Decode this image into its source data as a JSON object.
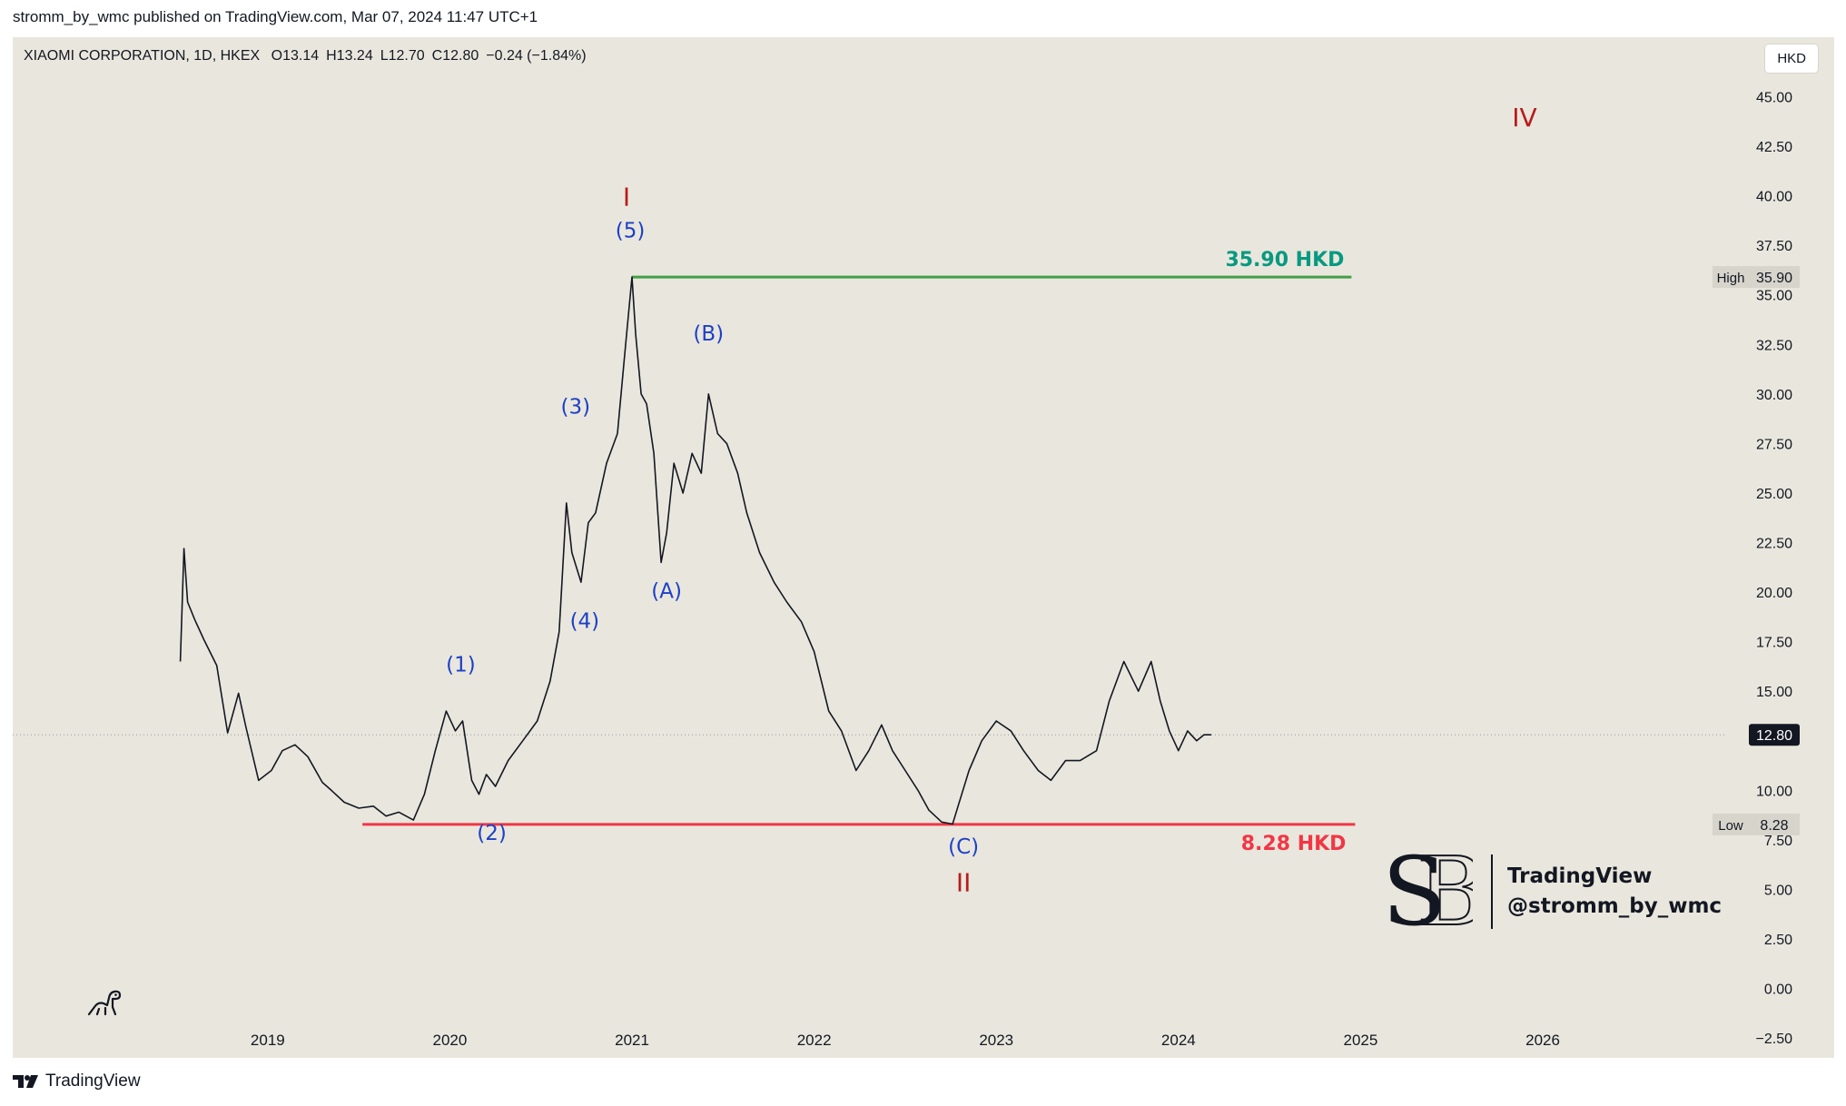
{
  "header": {
    "publisher": "stromm_by_wmc published on TradingView.com, Mar 07, 2024 11:47 UTC+1"
  },
  "symbol": {
    "name": "XIAOMI CORPORATION, 1D, HKEX",
    "open": "O13.14",
    "high": "H13.24",
    "low": "L12.70",
    "close": "C12.80",
    "change": "−0.24 (−1.84%)"
  },
  "currency_button": "HKD",
  "colors": {
    "background": "#e9e7dd",
    "price_line": "#131722",
    "high_line": "#43a047",
    "low_line": "#f23645",
    "wave_blue": "#1e40c8",
    "wave_red": "#b71c1c",
    "high_text": "#089981",
    "low_text": "#f23645"
  },
  "chart_data": {
    "type": "line",
    "title": "XIAOMI CORPORATION, 1D, HKEX",
    "ylim": [
      -3.5,
      48
    ],
    "y_ticks": [
      "45.00",
      "42.50",
      "40.00",
      "37.50",
      "35.00",
      "32.50",
      "30.00",
      "27.50",
      "25.00",
      "22.50",
      "20.00",
      "17.50",
      "15.00",
      "10.00",
      "7.50",
      "5.00",
      "2.50",
      "0.00",
      "−2.50"
    ],
    "y_tick_values": [
      45,
      42.5,
      40,
      37.5,
      35,
      32.5,
      30,
      27.5,
      25,
      22.5,
      20,
      17.5,
      15,
      10,
      7.5,
      5,
      2.5,
      0,
      -2.5
    ],
    "x_ticks": [
      "2019",
      "2020",
      "2021",
      "2022",
      "2023",
      "2024",
      "2025",
      "2026"
    ],
    "x_tick_values": [
      2019.0,
      2020.0,
      2021.0,
      2022.0,
      2023.0,
      2024.0,
      2025.0,
      2026.0
    ],
    "xlim": [
      2017.6,
      2027.6
    ],
    "series": [
      {
        "x": [
          2018.52,
          2018.54,
          2018.56,
          2018.6,
          2018.65,
          2018.72,
          2018.78,
          2018.84,
          2018.88,
          2018.95,
          2019.02,
          2019.08,
          2019.15,
          2019.22,
          2019.3,
          2019.35,
          2019.42,
          2019.5,
          2019.58,
          2019.65,
          2019.72,
          2019.8,
          2019.86,
          2019.92,
          2019.98,
          2020.03,
          2020.07,
          2020.12,
          2020.16,
          2020.2,
          2020.25,
          2020.32,
          2020.4,
          2020.48,
          2020.55,
          2020.6,
          2020.64,
          2020.67,
          2020.72,
          2020.76,
          2020.8,
          2020.86,
          2020.92,
          2020.96,
          2021.0,
          2021.02,
          2021.05,
          2021.08,
          2021.12,
          2021.16,
          2021.19,
          2021.23,
          2021.28,
          2021.33,
          2021.38,
          2021.42,
          2021.47,
          2021.52,
          2021.58,
          2021.63,
          2021.7,
          2021.78,
          2021.85,
          2021.93,
          2022.0,
          2022.08,
          2022.15,
          2022.23,
          2022.3,
          2022.37,
          2022.43,
          2022.5,
          2022.57,
          2022.63,
          2022.7,
          2022.76,
          2022.8,
          2022.85,
          2022.92,
          2023.0,
          2023.08,
          2023.15,
          2023.23,
          2023.3,
          2023.38,
          2023.46,
          2023.55,
          2023.62,
          2023.7,
          2023.78,
          2023.85,
          2023.9,
          2023.95,
          2024.0,
          2024.05,
          2024.1,
          2024.14,
          2024.18
        ],
        "values": [
          16.5,
          22.2,
          19.5,
          18.6,
          17.6,
          16.3,
          12.9,
          14.9,
          13.2,
          10.5,
          11.0,
          12.0,
          12.3,
          11.7,
          10.4,
          10.0,
          9.4,
          9.1,
          9.2,
          8.7,
          8.9,
          8.5,
          9.8,
          12.0,
          14.0,
          13.0,
          13.5,
          10.5,
          9.8,
          10.8,
          10.2,
          11.5,
          12.5,
          13.5,
          15.5,
          18.0,
          24.5,
          22.0,
          20.5,
          23.5,
          24.0,
          26.5,
          28.0,
          32.0,
          35.9,
          33.0,
          30.0,
          29.5,
          27.0,
          21.5,
          23.0,
          26.5,
          25.0,
          27.0,
          26.0,
          30.0,
          28.0,
          27.5,
          26.0,
          24.0,
          22.0,
          20.5,
          19.5,
          18.5,
          17.0,
          14.0,
          13.0,
          11.0,
          12.0,
          13.3,
          12.0,
          11.0,
          10.0,
          9.0,
          8.4,
          8.3,
          9.5,
          11.0,
          12.5,
          13.5,
          13.0,
          12.0,
          11.0,
          10.5,
          11.5,
          11.5,
          12.0,
          14.5,
          16.5,
          15.0,
          16.5,
          14.5,
          13.0,
          12.0,
          13.0,
          12.5,
          12.8,
          12.8
        ]
      }
    ],
    "current_price": 12.8,
    "current_price_label": "12.80",
    "high": {
      "label": "High",
      "value": 35.9,
      "value_label": "35.90",
      "annotation": "35.90 HKD",
      "x_from": 2021.0,
      "x_to": 2024.95
    },
    "low": {
      "label": "Low",
      "value": 8.28,
      "value_label": "8.28",
      "annotation": "8.28 HKD",
      "x_from": 2019.52,
      "x_to": 2024.97
    },
    "wave_labels": [
      {
        "text": "(1)",
        "x": 2020.06,
        "y": 16.0,
        "color": "blue"
      },
      {
        "text": "(2)",
        "x": 2020.23,
        "y": 7.5,
        "color": "blue"
      },
      {
        "text": "(3)",
        "x": 2020.69,
        "y": 29.0,
        "color": "blue"
      },
      {
        "text": "(4)",
        "x": 2020.74,
        "y": 18.2,
        "color": "blue"
      },
      {
        "text": "(5)",
        "x": 2020.99,
        "y": 37.9,
        "color": "blue"
      },
      {
        "text": "(A)",
        "x": 2021.19,
        "y": 19.7,
        "color": "blue"
      },
      {
        "text": "(B)",
        "x": 2021.42,
        "y": 32.7,
        "color": "blue"
      },
      {
        "text": "(C)",
        "x": 2022.82,
        "y": 6.8,
        "color": "blue"
      },
      {
        "text": "I",
        "x": 2020.97,
        "y": 39.5,
        "color": "red"
      },
      {
        "text": "II",
        "x": 2022.82,
        "y": 4.9,
        "color": "red"
      },
      {
        "text": "IV",
        "x": 2025.9,
        "y": 43.5,
        "color": "red"
      }
    ]
  },
  "watermark": {
    "brand": "TradingView",
    "handle": "@stromm_by_wmc"
  },
  "footer": {
    "brand": "TradingView"
  }
}
